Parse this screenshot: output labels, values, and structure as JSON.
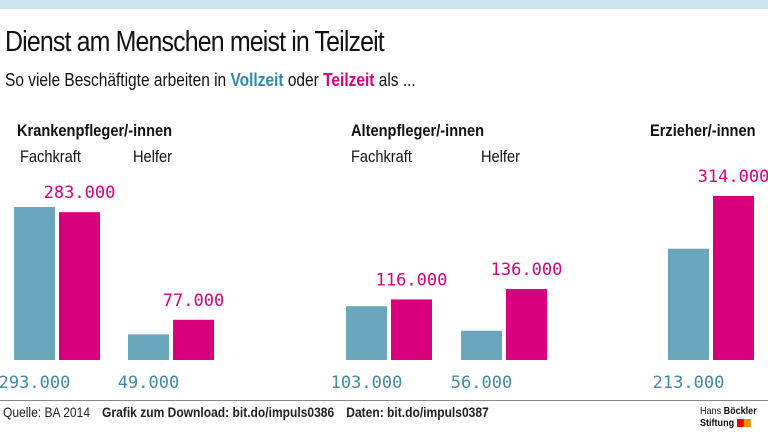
{
  "title": "Dienst am Menschen meist in Teilzeit",
  "subtitle": {
    "pre": "So viele Beschäftigte arbeiten in ",
    "full": "Vollzeit",
    "mid": " oder ",
    "part": "Teilzeit",
    "post": " als ..."
  },
  "chart_data": {
    "type": "bar",
    "series": [
      {
        "name": "Vollzeit",
        "color": "#6aa7bc"
      },
      {
        "name": "Teilzeit",
        "color": "#d9007e"
      }
    ],
    "groups": [
      {
        "title": "Krankenpfleger/-innen",
        "bars": [
          {
            "label": "Fachkraft",
            "values": [
              293000,
              283000
            ],
            "texts": [
              "293.000",
              "283.000"
            ]
          },
          {
            "label": "Helfer",
            "values": [
              49000,
              77000
            ],
            "texts": [
              "49.000",
              "77.000"
            ]
          }
        ]
      },
      {
        "title": "Altenpfleger/-innen",
        "bars": [
          {
            "label": "Fachkraft",
            "values": [
              103000,
              116000
            ],
            "texts": [
              "103.000",
              "116.000"
            ]
          },
          {
            "label": "Helfer",
            "values": [
              56000,
              136000
            ],
            "texts": [
              "56.000",
              "136.000"
            ]
          }
        ]
      },
      {
        "title": "Erzieher/-innen",
        "bars": [
          {
            "label": "",
            "values": [
              213000,
              314000
            ],
            "texts": [
              "213.000",
              "314.000"
            ]
          }
        ]
      }
    ]
  },
  "footer": {
    "source": "Quelle: BA 2014",
    "download": "Grafik zum Download: bit.do/impuls0386",
    "data": "Daten: bit.do/impuls0387"
  },
  "logo": {
    "line1a": "Hans ",
    "line1b": "Böckler",
    "line2": "Stiftung"
  }
}
